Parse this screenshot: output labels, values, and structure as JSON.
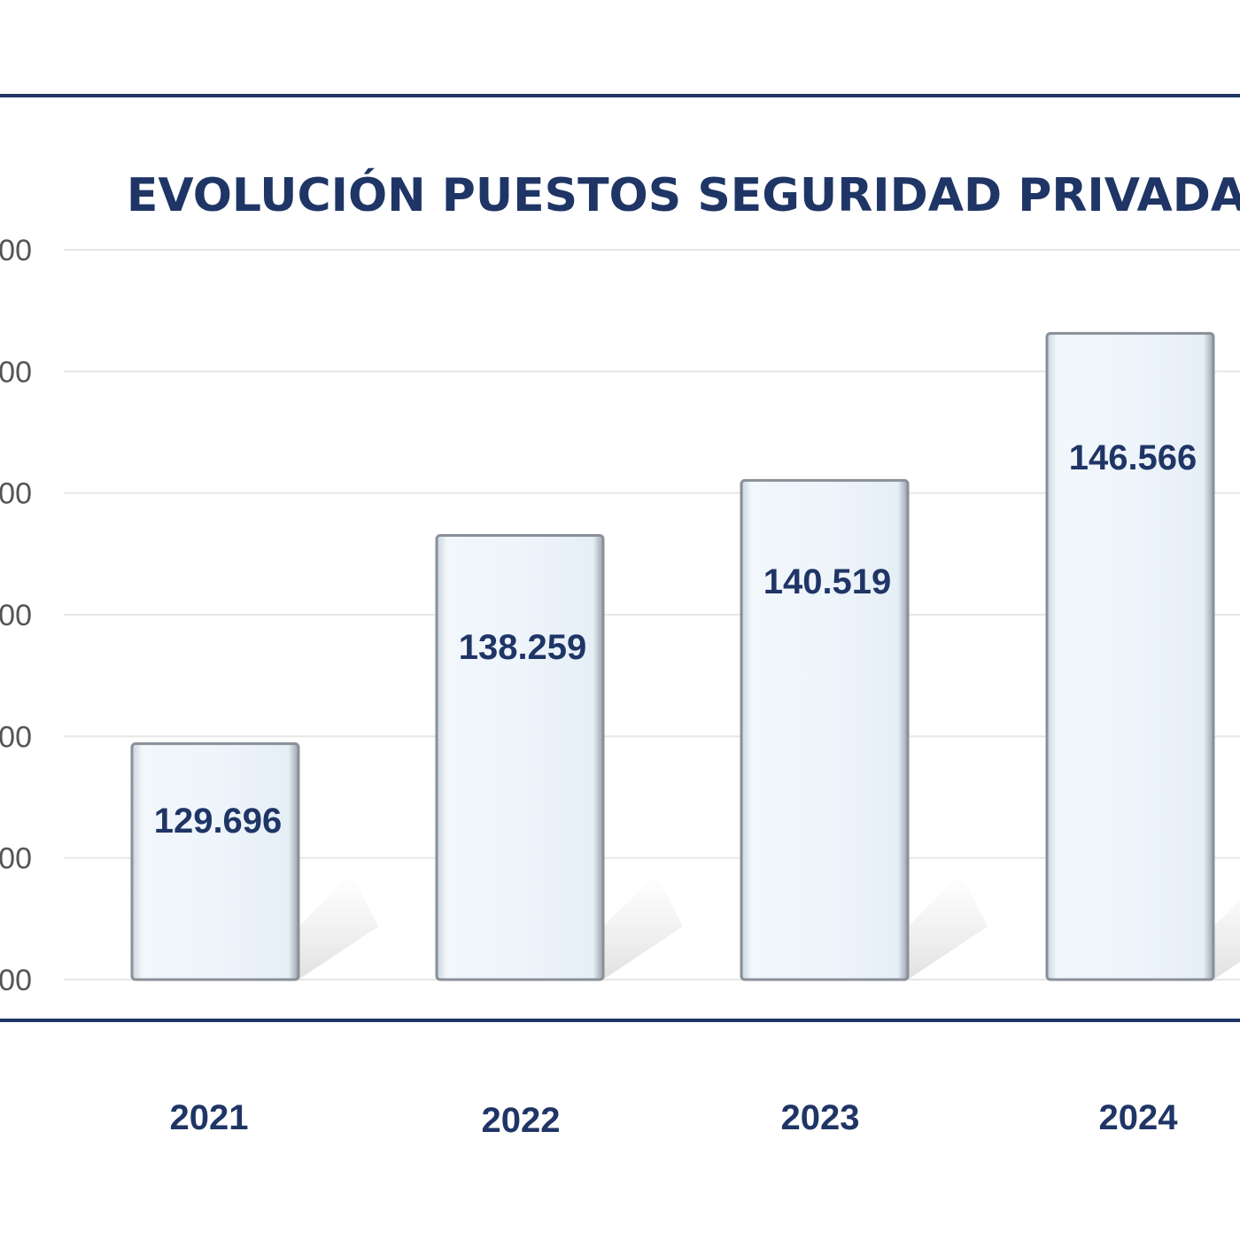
{
  "chart_data": {
    "type": "bar",
    "title": "EVOLUCIÓN PUESTOS SEGURIDAD PRIVADA",
    "categories": [
      "2021",
      "2022",
      "2023",
      "2024"
    ],
    "values": [
      129696,
      138259,
      140519,
      146566
    ],
    "data_labels": [
      "129.696",
      "138.259",
      "140.519",
      "146.566"
    ],
    "y_tick_labels": [
      "00",
      "00",
      "00",
      "00",
      "00",
      "00",
      "00"
    ],
    "ylim": [
      120000,
      150000
    ],
    "grid": true,
    "legend": "none",
    "colors": {
      "bar_fill": "#eef5fb",
      "bar_edge": "#8a9099",
      "text": "#1f3566",
      "frame": "#1f3566",
      "grid": "#e6e6e6"
    }
  }
}
